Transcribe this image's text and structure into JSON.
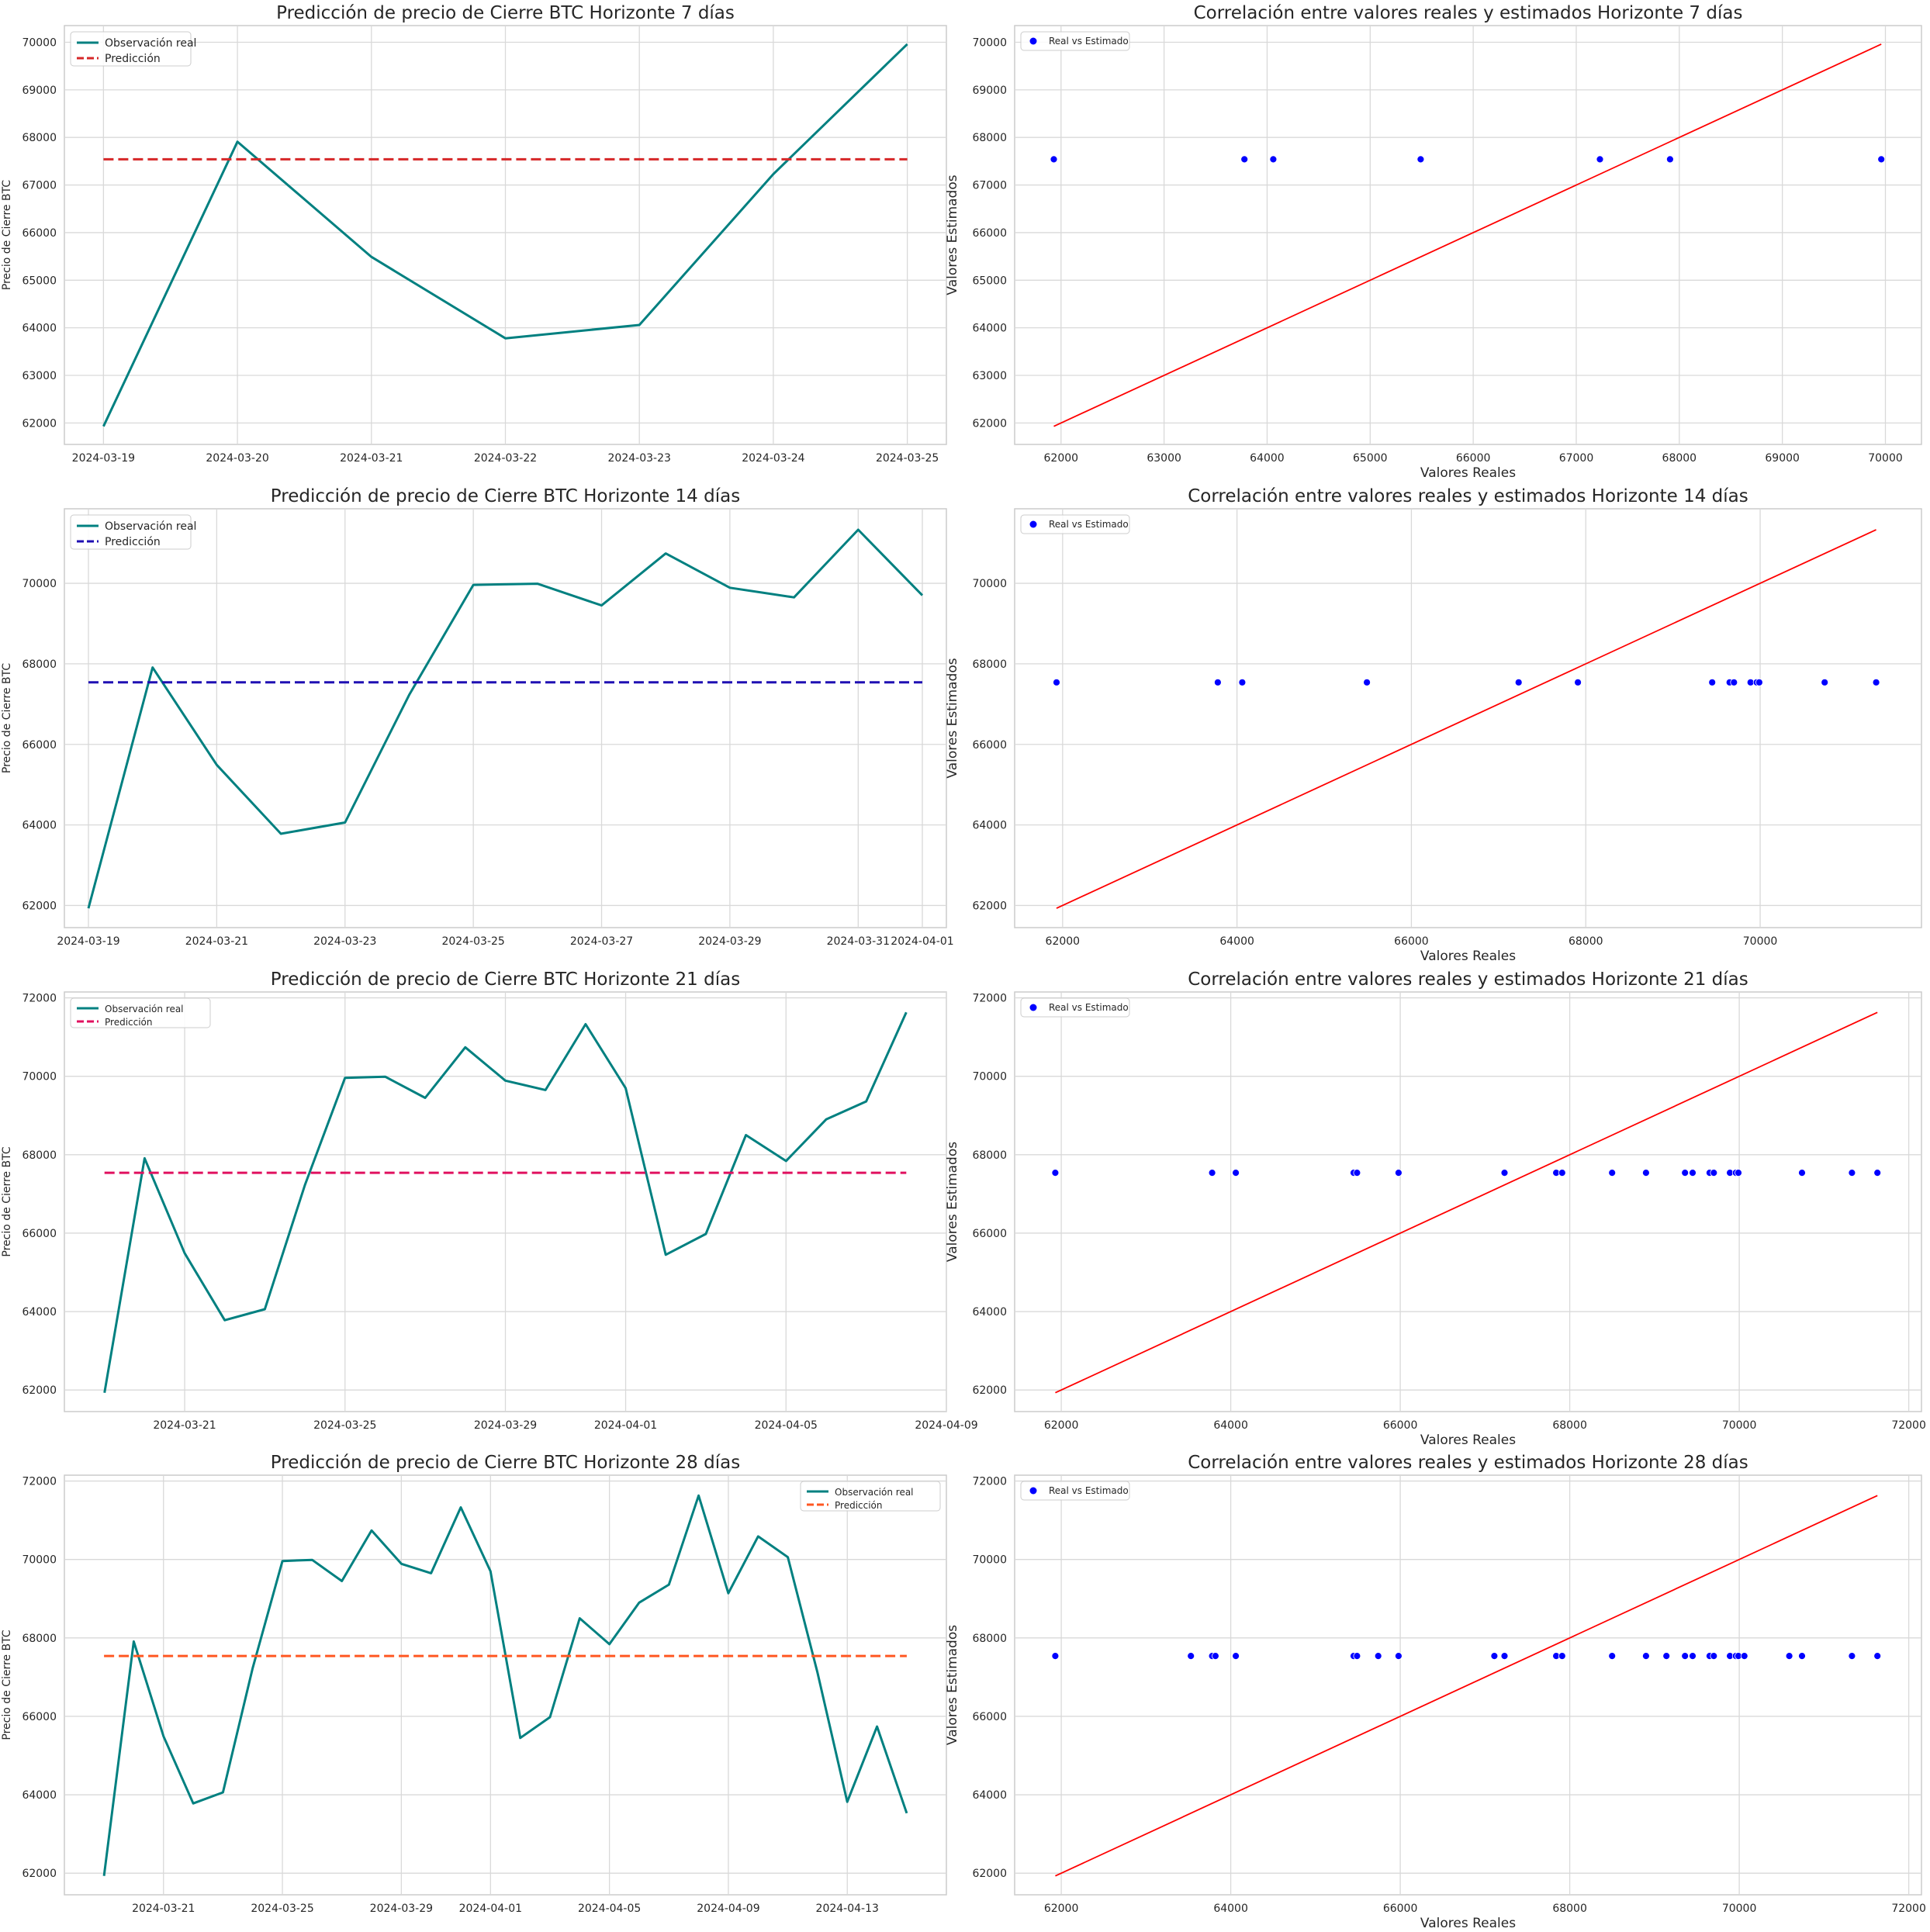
{
  "chart_data": [
    {
      "id": "ts7",
      "type": "line",
      "title": "Predicción de precio de Cierre BTC Horizonte 7 días",
      "ylabel": "Precio de Cierre BTC",
      "xlabel": "",
      "x": [
        "2024-03-19",
        "2024-03-20",
        "2024-03-21",
        "2024-03-22",
        "2024-03-23",
        "2024-03-24",
        "2024-03-25"
      ],
      "xticks": [
        "2024-03-19",
        "2024-03-20",
        "2024-03-21",
        "2024-03-22",
        "2024-03-23",
        "2024-03-24",
        "2024-03-25"
      ],
      "xlim": [
        "2024-03-18T17:00",
        "2024-03-25T07:00"
      ],
      "ylim": [
        61550,
        70350
      ],
      "yticks": [
        62000,
        63000,
        64000,
        65000,
        66000,
        67000,
        68000,
        69000,
        70000
      ],
      "series": [
        {
          "name": "Observación real",
          "color": "#008080",
          "dash": false,
          "values": [
            61930,
            67910,
            65490,
            63780,
            64060,
            67230,
            69960
          ]
        },
        {
          "name": "Predicción",
          "color": "#d62728",
          "dash": true,
          "values": [
            67540,
            67540,
            67540,
            67540,
            67540,
            67540,
            67540
          ]
        }
      ],
      "legend": "top-left"
    },
    {
      "id": "sc7",
      "type": "scatter",
      "title": "Correlación entre valores reales y estimados Horizonte 7 días",
      "xlabel": "Valores Reales",
      "ylabel": "Valores Estimados",
      "xlim": [
        61550,
        70350
      ],
      "ylim": [
        61550,
        70350
      ],
      "xticks": [
        62000,
        63000,
        64000,
        65000,
        66000,
        67000,
        68000,
        69000,
        70000
      ],
      "yticks": [
        62000,
        63000,
        64000,
        65000,
        66000,
        67000,
        68000,
        69000,
        70000
      ],
      "series": [
        {
          "name": "Real vs Estimado",
          "color": "#0000ff",
          "x": [
            61930,
            63780,
            64060,
            65490,
            67230,
            67910,
            69960
          ],
          "y": [
            67540,
            67540,
            67540,
            67540,
            67540,
            67540,
            67540
          ]
        }
      ],
      "reference_line": {
        "color": "#ff0000",
        "x": [
          61930,
          69960
        ],
        "y": [
          61930,
          69960
        ]
      },
      "legend": "top-left"
    },
    {
      "id": "ts14",
      "type": "line",
      "title": "Predicción de precio de Cierre BTC Horizonte 14 días",
      "ylabel": "Precio de Cierre BTC",
      "xlabel": "",
      "x": [
        "2024-03-19",
        "2024-03-20",
        "2024-03-21",
        "2024-03-22",
        "2024-03-23",
        "2024-03-24",
        "2024-03-25",
        "2024-03-26",
        "2024-03-27",
        "2024-03-28",
        "2024-03-29",
        "2024-03-30",
        "2024-03-31",
        "2024-04-01"
      ],
      "xticks": [
        "2024-03-19",
        "2024-03-21",
        "2024-03-23",
        "2024-03-25",
        "2024-03-27",
        "2024-03-29",
        "2024-03-31",
        "2024-04-01"
      ],
      "xlim": [
        "2024-03-18T15:00",
        "2024-04-01T09:00"
      ],
      "ylim": [
        61450,
        71850
      ],
      "yticks": [
        62000,
        64000,
        66000,
        68000,
        70000
      ],
      "series": [
        {
          "name": "Observación real",
          "color": "#008080",
          "dash": false,
          "values": [
            61930,
            67910,
            65490,
            63780,
            64060,
            67230,
            69960,
            69990,
            69450,
            70740,
            69890,
            69650,
            71330,
            69700
          ]
        },
        {
          "name": "Predicción",
          "color": "#1f0fb3",
          "dash": true,
          "values": [
            67540,
            67540,
            67540,
            67540,
            67540,
            67540,
            67540,
            67540,
            67540,
            67540,
            67540,
            67540,
            67540,
            67540
          ]
        }
      ],
      "legend": "top-left"
    },
    {
      "id": "sc14",
      "type": "scatter",
      "title": "Correlación entre valores reales y estimados Horizonte 14 días",
      "xlabel": "Valores Reales",
      "ylabel": "Valores Estimados",
      "xlim": [
        61450,
        71850
      ],
      "ylim": [
        61450,
        71850
      ],
      "xticks": [
        62000,
        64000,
        66000,
        68000,
        70000
      ],
      "yticks": [
        62000,
        64000,
        66000,
        68000,
        70000
      ],
      "series": [
        {
          "name": "Real vs Estimado",
          "color": "#0000ff",
          "x": [
            61930,
            63780,
            64060,
            65490,
            67230,
            67910,
            69450,
            69650,
            69700,
            69890,
            69960,
            69990,
            70740,
            71330
          ],
          "y": [
            67540,
            67540,
            67540,
            67540,
            67540,
            67540,
            67540,
            67540,
            67540,
            67540,
            67540,
            67540,
            67540,
            67540
          ]
        }
      ],
      "reference_line": {
        "color": "#ff0000",
        "x": [
          61930,
          71330
        ],
        "y": [
          61930,
          71330
        ]
      },
      "legend": "top-left"
    },
    {
      "id": "ts21",
      "type": "line",
      "title": "Predicción de precio de Cierre BTC Horizonte 21 días",
      "ylabel": "Precio de Cierre BTC",
      "xlabel": "",
      "x": [
        "2024-03-19",
        "2024-03-20",
        "2024-03-21",
        "2024-03-22",
        "2024-03-23",
        "2024-03-24",
        "2024-03-25",
        "2024-03-26",
        "2024-03-27",
        "2024-03-28",
        "2024-03-29",
        "2024-03-30",
        "2024-03-31",
        "2024-04-01",
        "2024-04-02",
        "2024-04-03",
        "2024-04-04",
        "2024-04-05",
        "2024-04-06",
        "2024-04-07",
        "2024-04-08"
      ],
      "xticks": [
        "2024-03-21",
        "2024-03-25",
        "2024-03-29",
        "2024-04-01",
        "2024-04-05",
        "2024-04-09"
      ],
      "xlim": [
        "2024-03-18T00:00",
        "2024-04-09T00:00"
      ],
      "ylim": [
        61450,
        72150
      ],
      "yticks": [
        62000,
        64000,
        66000,
        68000,
        70000,
        72000
      ],
      "series": [
        {
          "name": "Observación real",
          "color": "#008080",
          "dash": false,
          "values": [
            61930,
            67910,
            65490,
            63780,
            64060,
            67230,
            69960,
            69990,
            69450,
            70740,
            69890,
            69650,
            71330,
            69700,
            65450,
            65980,
            68500,
            67840,
            68900,
            69360,
            71630
          ]
        },
        {
          "name": "Predicción",
          "color": "#e0115f",
          "dash": true,
          "values": [
            67540,
            67540,
            67540,
            67540,
            67540,
            67540,
            67540,
            67540,
            67540,
            67540,
            67540,
            67540,
            67540,
            67540,
            67540,
            67540,
            67540,
            67540,
            67540,
            67540,
            67540
          ]
        }
      ],
      "legend": "top-left"
    },
    {
      "id": "sc21",
      "type": "scatter",
      "title": "Correlación entre valores reales y estimados Horizonte 21 días",
      "xlabel": "Valores Reales",
      "ylabel": "Valores Estimados",
      "xlim": [
        61450,
        72150
      ],
      "ylim": [
        61450,
        72150
      ],
      "xticks": [
        62000,
        64000,
        66000,
        68000,
        70000,
        72000
      ],
      "yticks": [
        62000,
        64000,
        66000,
        68000,
        70000,
        72000
      ],
      "series": [
        {
          "name": "Real vs Estimado",
          "color": "#0000ff",
          "x": [
            61930,
            63780,
            64060,
            65450,
            65490,
            65980,
            67230,
            67840,
            67910,
            68500,
            68900,
            69360,
            69450,
            69650,
            69700,
            69890,
            69960,
            69990,
            70740,
            71330,
            71630
          ],
          "y": [
            67540,
            67540,
            67540,
            67540,
            67540,
            67540,
            67540,
            67540,
            67540,
            67540,
            67540,
            67540,
            67540,
            67540,
            67540,
            67540,
            67540,
            67540,
            67540,
            67540,
            67540
          ]
        }
      ],
      "reference_line": {
        "color": "#ff0000",
        "x": [
          61930,
          71630
        ],
        "y": [
          61930,
          71630
        ]
      },
      "legend": "top-left"
    },
    {
      "id": "ts28",
      "type": "line",
      "title": "Predicción de precio de Cierre BTC Horizonte 28 días",
      "ylabel": "Precio de Cierre BTC",
      "xlabel": "",
      "x": [
        "2024-03-19",
        "2024-03-20",
        "2024-03-21",
        "2024-03-22",
        "2024-03-23",
        "2024-03-24",
        "2024-03-25",
        "2024-03-26",
        "2024-03-27",
        "2024-03-28",
        "2024-03-29",
        "2024-03-30",
        "2024-03-31",
        "2024-04-01",
        "2024-04-02",
        "2024-04-03",
        "2024-04-04",
        "2024-04-05",
        "2024-04-06",
        "2024-04-07",
        "2024-04-08",
        "2024-04-09",
        "2024-04-10",
        "2024-04-11",
        "2024-04-12",
        "2024-04-13",
        "2024-04-14",
        "2024-04-15"
      ],
      "xticks": [
        "2024-03-21",
        "2024-03-25",
        "2024-03-29",
        "2024-04-01",
        "2024-04-05",
        "2024-04-09",
        "2024-04-13"
      ],
      "xlim": [
        "2024-03-17T16:00",
        "2024-04-16T08:00"
      ],
      "ylim": [
        61450,
        72150
      ],
      "yticks": [
        62000,
        64000,
        66000,
        68000,
        70000,
        72000
      ],
      "series": [
        {
          "name": "Observación real",
          "color": "#008080",
          "dash": false,
          "values": [
            61930,
            67910,
            65490,
            63780,
            64060,
            67230,
            69960,
            69990,
            69450,
            70740,
            69890,
            69650,
            71330,
            69700,
            65450,
            65980,
            68500,
            67840,
            68900,
            69360,
            71630,
            69140,
            70590,
            70060,
            67110,
            63820,
            65740,
            63530
          ]
        },
        {
          "name": "Predicción",
          "color": "#ff5722",
          "dash": true,
          "values": [
            67540,
            67540,
            67540,
            67540,
            67540,
            67540,
            67540,
            67540,
            67540,
            67540,
            67540,
            67540,
            67540,
            67540,
            67540,
            67540,
            67540,
            67540,
            67540,
            67540,
            67540,
            67540,
            67540,
            67540,
            67540,
            67540,
            67540,
            67540
          ]
        }
      ],
      "legend": "top-right"
    },
    {
      "id": "sc28",
      "type": "scatter",
      "title": "Correlación entre valores reales y estimados Horizonte 28 días",
      "xlabel": "Valores Reales",
      "ylabel": "Valores Estimados",
      "xlim": [
        61450,
        72150
      ],
      "ylim": [
        61450,
        72150
      ],
      "xticks": [
        62000,
        64000,
        66000,
        68000,
        70000,
        72000
      ],
      "yticks": [
        62000,
        64000,
        66000,
        68000,
        70000,
        72000
      ],
      "series": [
        {
          "name": "Real vs Estimado",
          "color": "#0000ff",
          "x": [
            61930,
            63530,
            63780,
            63820,
            64060,
            65450,
            65490,
            65740,
            65980,
            67110,
            67230,
            67840,
            67910,
            68500,
            68900,
            69140,
            69360,
            69450,
            69650,
            69700,
            69890,
            69960,
            69990,
            70060,
            70590,
            70740,
            71330,
            71630
          ],
          "y": [
            67540,
            67540,
            67540,
            67540,
            67540,
            67540,
            67540,
            67540,
            67540,
            67540,
            67540,
            67540,
            67540,
            67540,
            67540,
            67540,
            67540,
            67540,
            67540,
            67540,
            67540,
            67540,
            67540,
            67540,
            67540,
            67540,
            67540,
            67540
          ]
        }
      ],
      "reference_line": {
        "color": "#ff0000",
        "x": [
          61930,
          71630
        ],
        "y": [
          61930,
          71630
        ]
      },
      "legend": "top-left"
    }
  ]
}
